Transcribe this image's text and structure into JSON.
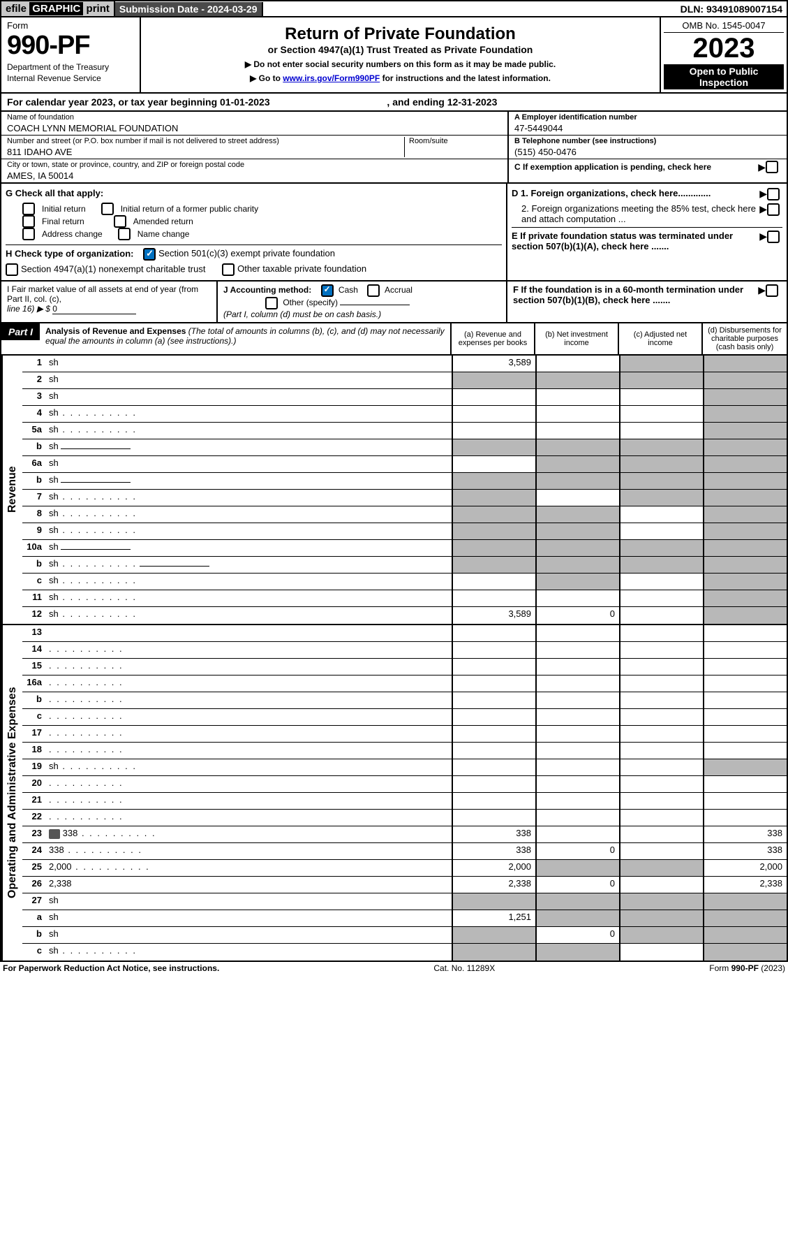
{
  "topbar": {
    "eprint_prefix": "efile ",
    "eprint_graphic": "GRAPHIC",
    "eprint_print": " print",
    "subdate_label": "Submission Date - ",
    "subdate": "2024-03-29",
    "dln_label": "DLN: ",
    "dln": "93491089007154"
  },
  "header": {
    "form_label": "Form",
    "form_number": "990-PF",
    "dept1": "Department of the Treasury",
    "dept2": "Internal Revenue Service",
    "title": "Return of Private Foundation",
    "subtitle": "or Section 4947(a)(1) Trust Treated as Private Foundation",
    "note1": "▶ Do not enter social security numbers on this form as it may be made public.",
    "note2_pre": "▶ Go to ",
    "note2_link": "www.irs.gov/Form990PF",
    "note2_post": " for instructions and the latest information.",
    "omb": "OMB No. 1545-0047",
    "year": "2023",
    "opento": "Open to Public Inspection"
  },
  "calendar": {
    "text_pre": "For calendar year 2023, or tax year beginning ",
    "begin": "01-01-2023",
    "mid": " , and ending ",
    "end": "12-31-2023"
  },
  "id": {
    "name_label": "Name of foundation",
    "name": "COACH LYNN MEMORIAL FOUNDATION",
    "street_label": "Number and street (or P.O. box number if mail is not delivered to street address)",
    "street": "811 IDAHO AVE",
    "room_label": "Room/suite",
    "room": "",
    "city_label": "City or town, state or province, country, and ZIP or foreign postal code",
    "city": "AMES, IA  50014",
    "ein_label": "A Employer identification number",
    "ein": "47-5449044",
    "phone_label": "B Telephone number (see instructions)",
    "phone": "(515) 450-0476",
    "c_label": "C If exemption application is pending, check here",
    "d1_label": "D 1. Foreign organizations, check here.............",
    "d2_label": "2. Foreign organizations meeting the 85% test, check here and attach computation ...",
    "e_label": "E  If private foundation status was terminated under section 507(b)(1)(A), check here .......",
    "f_label": "F  If the foundation is in a 60-month termination under section 507(b)(1)(B), check here ......."
  },
  "g": {
    "label": "G Check all that apply:",
    "opts": [
      "Initial return",
      "Initial return of a former public charity",
      "Final return",
      "Amended return",
      "Address change",
      "Name change"
    ]
  },
  "h": {
    "label": "H Check type of organization:",
    "opt1": "Section 501(c)(3) exempt private foundation",
    "opt2": "Section 4947(a)(1) nonexempt charitable trust",
    "opt3": "Other taxable private foundation"
  },
  "i": {
    "label_pre": "I Fair market value of all assets at end of year (from Part II, col. (c),",
    "label_line": "line 16) ▶ $ ",
    "val": "0"
  },
  "j": {
    "label": "J Accounting method:",
    "cash": "Cash",
    "accrual": "Accrual",
    "other": "Other (specify)",
    "note": "(Part I, column (d) must be on cash basis.)"
  },
  "part1": {
    "label": "Part I",
    "title": "Analysis of Revenue and Expenses",
    "title_note": " (The total of amounts in columns (b), (c), and (d) may not necessarily equal the amounts in column (a) (see instructions).)",
    "col_a": "(a)   Revenue and expenses per books",
    "col_b": "(b)   Net investment income",
    "col_c": "(c)  Adjusted net income",
    "col_d": "(d)  Disbursements for charitable purposes (cash basis only)"
  },
  "side_rev": "Revenue",
  "side_exp": "Operating and Administrative Expenses",
  "rows_rev": [
    {
      "n": "1",
      "d": "sh",
      "a": "3,589",
      "b": "",
      "c": "sh"
    },
    {
      "n": "2",
      "d": "sh",
      "a": "sh",
      "b": "sh",
      "c": "sh",
      "checked": true
    },
    {
      "n": "3",
      "d": "sh",
      "a": "",
      "b": "",
      "c": ""
    },
    {
      "n": "4",
      "d": "sh",
      "dots": true,
      "a": "",
      "b": "",
      "c": ""
    },
    {
      "n": "5a",
      "d": "sh",
      "dots": true,
      "a": "",
      "b": "",
      "c": ""
    },
    {
      "n": "b",
      "d": "sh",
      "sub": true,
      "a": "sh",
      "b": "sh",
      "c": "sh"
    },
    {
      "n": "6a",
      "d": "sh",
      "a": "",
      "b": "sh",
      "c": "sh"
    },
    {
      "n": "b",
      "d": "sh",
      "sub": true,
      "a": "sh",
      "b": "sh",
      "c": "sh"
    },
    {
      "n": "7",
      "d": "sh",
      "dots": true,
      "a": "sh",
      "b": "",
      "c": "sh"
    },
    {
      "n": "8",
      "d": "sh",
      "dots": true,
      "a": "sh",
      "b": "sh",
      "c": ""
    },
    {
      "n": "9",
      "d": "sh",
      "dots": true,
      "a": "sh",
      "b": "sh",
      "c": ""
    },
    {
      "n": "10a",
      "d": "sh",
      "sub": true,
      "a": "sh",
      "b": "sh",
      "c": "sh"
    },
    {
      "n": "b",
      "d": "sh",
      "dots": true,
      "sub": true,
      "a": "sh",
      "b": "sh",
      "c": "sh"
    },
    {
      "n": "c",
      "d": "sh",
      "dots": true,
      "a": "",
      "b": "sh",
      "c": ""
    },
    {
      "n": "11",
      "d": "sh",
      "dots": true,
      "a": "",
      "b": "",
      "c": ""
    },
    {
      "n": "12",
      "d": "sh",
      "dots": true,
      "a": "3,589",
      "b": "0",
      "c": ""
    }
  ],
  "rows_exp": [
    {
      "n": "13",
      "d": "",
      "a": "",
      "b": "",
      "c": ""
    },
    {
      "n": "14",
      "d": "",
      "dots": true,
      "a": "",
      "b": "",
      "c": ""
    },
    {
      "n": "15",
      "d": "",
      "dots": true,
      "a": "",
      "b": "",
      "c": ""
    },
    {
      "n": "16a",
      "d": "",
      "dots": true,
      "a": "",
      "b": "",
      "c": ""
    },
    {
      "n": "b",
      "d": "",
      "dots": true,
      "a": "",
      "b": "",
      "c": ""
    },
    {
      "n": "c",
      "d": "",
      "dots": true,
      "a": "",
      "b": "",
      "c": ""
    },
    {
      "n": "17",
      "d": "",
      "dots": true,
      "a": "",
      "b": "",
      "c": ""
    },
    {
      "n": "18",
      "d": "",
      "dots": true,
      "a": "",
      "b": "",
      "c": ""
    },
    {
      "n": "19",
      "d": "sh",
      "dots": true,
      "a": "",
      "b": "",
      "c": ""
    },
    {
      "n": "20",
      "d": "",
      "dots": true,
      "a": "",
      "b": "",
      "c": ""
    },
    {
      "n": "21",
      "d": "",
      "dots": true,
      "a": "",
      "b": "",
      "c": ""
    },
    {
      "n": "22",
      "d": "",
      "dots": true,
      "a": "",
      "b": "",
      "c": ""
    },
    {
      "n": "23",
      "d": "338",
      "dots": true,
      "attach": true,
      "a": "338",
      "b": "",
      "c": ""
    },
    {
      "n": "24",
      "d": "338",
      "dots": true,
      "a": "338",
      "b": "0",
      "c": ""
    },
    {
      "n": "25",
      "d": "2,000",
      "dots": true,
      "a": "2,000",
      "b": "sh",
      "c": "sh"
    },
    {
      "n": "26",
      "d": "2,338",
      "a": "2,338",
      "b": "0",
      "c": ""
    },
    {
      "n": "27",
      "d": "sh",
      "a": "sh",
      "b": "sh",
      "c": "sh"
    },
    {
      "n": "a",
      "d": "sh",
      "a": "1,251",
      "b": "sh",
      "c": "sh"
    },
    {
      "n": "b",
      "d": "sh",
      "a": "sh",
      "b": "0",
      "c": "sh"
    },
    {
      "n": "c",
      "d": "sh",
      "dots": true,
      "a": "sh",
      "b": "sh",
      "c": ""
    }
  ],
  "footer": {
    "left": "For Paperwork Reduction Act Notice, see instructions.",
    "mid": "Cat. No. 11289X",
    "right": "Form 990-PF (2023)"
  },
  "colors": {
    "shade": "#b8b8b8",
    "darkhdr": "#4a4a4a",
    "lighthdr": "#c8c8c8",
    "checkblue": "#0070c0",
    "link": "#0000d0"
  }
}
